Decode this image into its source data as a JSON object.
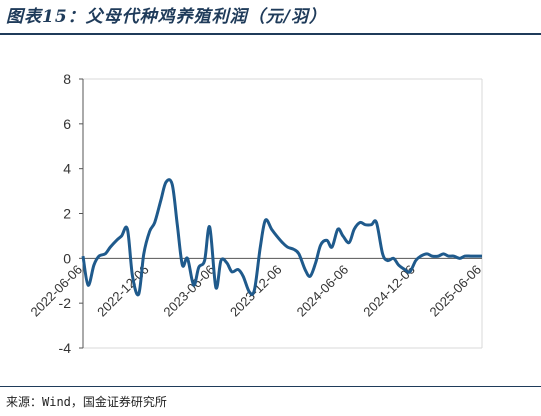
{
  "header": {
    "title": "图表15：父母代种鸡养殖利润（元/羽）"
  },
  "footer": {
    "source": "来源：Wind，国金证券研究所"
  },
  "colors": {
    "line": "#1f5a8c",
    "title": "#1f3b5a",
    "axis": "#555555"
  },
  "chart_data": {
    "type": "line",
    "title": "图表15：父母代种鸡养殖利润（元/羽）",
    "xlabel": "",
    "ylabel": "",
    "ylim": [
      -4,
      8
    ],
    "yticks": [
      "8",
      "6",
      "4",
      "2",
      "0",
      "-2",
      "-4"
    ],
    "xtick_labels": [
      "2022-06-06",
      "2022-12-06",
      "2023-06-06",
      "2023-12-06",
      "2024-06-06",
      "2024-12-06",
      "2025-06-06"
    ],
    "grid": false,
    "legend": "none",
    "series": [
      {
        "x": [
          "2022-06-06",
          "2022-06-20",
          "2022-07-06",
          "2022-07-20",
          "2022-08-06",
          "2022-08-20",
          "2022-09-06",
          "2022-09-20",
          "2022-10-06",
          "2022-10-20",
          "2022-11-06",
          "2022-11-20",
          "2022-12-06",
          "2022-12-20",
          "2023-01-06",
          "2023-01-20",
          "2023-02-06",
          "2023-02-20",
          "2023-03-06",
          "2023-03-20",
          "2023-04-06",
          "2023-04-20",
          "2023-05-06",
          "2023-05-20",
          "2023-06-06",
          "2023-06-20",
          "2023-07-06",
          "2023-07-20",
          "2023-08-06",
          "2023-08-20",
          "2023-09-06",
          "2023-09-20",
          "2023-10-06",
          "2023-10-20",
          "2023-11-06",
          "2023-11-20",
          "2023-12-06",
          "2023-12-20",
          "2024-01-06",
          "2024-01-20",
          "2024-02-06",
          "2024-02-20",
          "2024-03-06",
          "2024-03-20",
          "2024-04-06",
          "2024-04-20",
          "2024-05-06",
          "2024-05-20",
          "2024-06-06",
          "2024-06-20",
          "2024-07-06",
          "2024-07-20",
          "2024-08-06",
          "2024-08-20",
          "2024-09-06",
          "2024-09-20",
          "2024-10-06",
          "2024-10-20",
          "2024-11-06",
          "2024-11-20",
          "2024-12-06",
          "2024-12-20",
          "2025-01-06",
          "2025-01-20",
          "2025-02-06",
          "2025-02-20",
          "2025-03-06",
          "2025-03-20",
          "2025-04-06",
          "2025-04-20",
          "2025-05-06",
          "2025-05-20",
          "2025-06-06"
        ],
        "values": [
          0.1,
          -1.2,
          -0.3,
          0.1,
          0.2,
          0.5,
          0.8,
          1.0,
          1.3,
          -0.8,
          -1.6,
          0.2,
          1.2,
          1.6,
          2.6,
          3.4,
          3.3,
          1.5,
          -0.3,
          0.0,
          -1.2,
          -0.4,
          -0.1,
          1.4,
          -1.3,
          -0.1,
          -0.2,
          -0.6,
          -0.5,
          -0.8,
          -1.5,
          -1.4,
          0.5,
          1.7,
          1.3,
          1.0,
          0.7,
          0.5,
          0.4,
          0.2,
          -0.5,
          -0.8,
          -0.2,
          0.6,
          0.8,
          0.5,
          1.3,
          1.0,
          0.7,
          1.3,
          1.6,
          1.5,
          1.5,
          1.6,
          0.2,
          -0.1,
          0.0,
          -0.3,
          -0.5,
          -0.6,
          -0.1,
          0.1,
          0.2,
          0.1,
          0.1,
          0.2,
          0.1,
          0.1,
          0.0,
          0.1,
          0.1,
          0.1,
          0.1
        ]
      }
    ]
  }
}
